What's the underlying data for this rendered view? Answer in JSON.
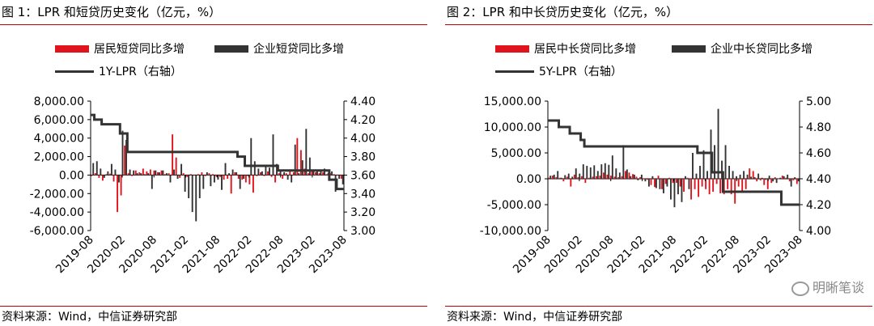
{
  "panels": [
    {
      "title": "图 1：LPR 和短贷历史变化（亿元，%）",
      "source": "资料来源：Wind，中信证券研究部",
      "legend": {
        "resident": "居民短贷同比多增",
        "enterprise": "企业短贷同比多增",
        "rate": "1Y-LPR（右轴）"
      }
    },
    {
      "title": "图 2：LPR 和中长贷历史变化（亿元，%）",
      "source": "资料来源：Wind，中信证券研究部",
      "legend": {
        "resident": "居民中长贷同比多增",
        "enterprise": "企业中长贷同比多增",
        "rate": "5Y-LPR（右轴）"
      }
    }
  ],
  "watermark": "明晰笔谈",
  "colors": {
    "resident": "#e0141c",
    "enterprise": "#333333",
    "rate": "#333333",
    "rule": "#c00000"
  },
  "chart_data": [
    {
      "type": "bar",
      "x_tick_labels": [
        "2019-08",
        "2020-02",
        "2020-08",
        "2021-02",
        "2021-08",
        "2022-02",
        "2022-08",
        "2023-02",
        "2023-08"
      ],
      "x_range": [
        "2019-08",
        "2023-08"
      ],
      "ylim": [
        -6000,
        8000
      ],
      "y_ticks": [
        "-6,000.00",
        "-4,000.00",
        "-2,000.00",
        "0.00",
        "2,000.00",
        "4,000.00",
        "6,000.00",
        "8,000.00"
      ],
      "y_tick_values": [
        -6000,
        -4000,
        -2000,
        0,
        2000,
        4000,
        6000,
        8000
      ],
      "y2lim": [
        3.0,
        4.4
      ],
      "y2_ticks": [
        "3.00",
        "3.20",
        "3.40",
        "3.60",
        "3.80",
        "4.00",
        "4.20",
        "4.40"
      ],
      "y2_tick_values": [
        3.0,
        3.2,
        3.4,
        3.6,
        3.8,
        4.0,
        4.2,
        4.4
      ],
      "series": [
        {
          "name": "居民短贷同比多增",
          "axis": "left",
          "values": [
            -100,
            200,
            -300,
            -600,
            100,
            150,
            -700,
            -4000,
            -2200,
            3200,
            200,
            -100,
            500,
            300,
            700,
            400,
            600,
            500,
            300,
            500,
            100,
            200,
            4400,
            1900,
            -300,
            200,
            -200,
            100,
            0,
            100,
            300,
            -100,
            200,
            100,
            -200,
            -200,
            -500,
            -400,
            -2000,
            300,
            -400,
            -500,
            -800,
            -1000,
            -1900,
            -100,
            300,
            -100,
            400,
            -200,
            -800,
            200,
            -400,
            200,
            500,
            300,
            4000,
            2700,
            700,
            200,
            400,
            300,
            200,
            300,
            100,
            200,
            100,
            0,
            -400
          ]
        },
        {
          "name": "企业短贷同比多增",
          "axis": "left",
          "values": [
            1300,
            1500,
            700,
            -300,
            400,
            1200,
            600,
            -800,
            4800,
            3800,
            600,
            500,
            200,
            200,
            100,
            200,
            -1500,
            500,
            300,
            500,
            200,
            -800,
            600,
            -400,
            1200,
            -1800,
            -2500,
            -4000,
            -5000,
            -2500,
            -1500,
            300,
            -1200,
            -800,
            -500,
            -1600,
            1300,
            200,
            600,
            300,
            -1500,
            -400,
            -100,
            4000,
            1500,
            700,
            400,
            1100,
            800,
            4400,
            1200,
            500,
            300,
            -500,
            -800,
            3300,
            200,
            1600,
            5000,
            1900,
            600,
            600,
            600,
            700,
            200,
            400,
            -1800,
            -400,
            -1000
          ]
        },
        {
          "name": "1Y-LPR（右轴）",
          "axis": "right",
          "type": "line",
          "values": [
            4.25,
            4.2,
            4.2,
            4.15,
            4.15,
            4.15,
            4.15,
            4.15,
            4.05,
            4.05,
            3.85,
            3.85,
            3.85,
            3.85,
            3.85,
            3.85,
            3.85,
            3.85,
            3.85,
            3.85,
            3.85,
            3.85,
            3.85,
            3.85,
            3.85,
            3.85,
            3.85,
            3.85,
            3.85,
            3.85,
            3.85,
            3.85,
            3.85,
            3.85,
            3.85,
            3.85,
            3.85,
            3.85,
            3.85,
            3.85,
            3.8,
            3.8,
            3.7,
            3.7,
            3.7,
            3.7,
            3.7,
            3.7,
            3.7,
            3.7,
            3.7,
            3.65,
            3.65,
            3.65,
            3.65,
            3.65,
            3.65,
            3.65,
            3.65,
            3.65,
            3.65,
            3.65,
            3.65,
            3.65,
            3.65,
            3.55,
            3.55,
            3.45,
            3.45
          ]
        }
      ]
    },
    {
      "type": "bar",
      "x_tick_labels": [
        "2019-08",
        "2020-02",
        "2020-08",
        "2021-02",
        "2021-08",
        "2022-02",
        "2022-08",
        "2023-02",
        "2023-08"
      ],
      "x_range": [
        "2019-08",
        "2023-08"
      ],
      "ylim": [
        -10000,
        15000
      ],
      "y_ticks": [
        "-10,000.00",
        "-5,000.00",
        "0.00",
        "5,000.00",
        "10,000.00",
        "15,000.00"
      ],
      "y_tick_values": [
        -10000,
        -5000,
        0,
        5000,
        10000,
        15000
      ],
      "y2lim": [
        4.0,
        5.0
      ],
      "y2_ticks": [
        "4.00",
        "4.20",
        "4.40",
        "4.60",
        "4.80",
        "5.00"
      ],
      "y2_tick_values": [
        4.0,
        4.2,
        4.4,
        4.6,
        4.8,
        5.0
      ],
      "series": [
        {
          "name": "居民中长贷同比多增",
          "axis": "left",
          "values": [
            200,
            600,
            300,
            200,
            -500,
            400,
            -1500,
            800,
            300,
            500,
            -800,
            200,
            400,
            500,
            600,
            1200,
            800,
            600,
            400,
            300,
            500,
            1500,
            1200,
            900,
            400,
            300,
            100,
            -200,
            -1200,
            -1600,
            600,
            -2000,
            -1000,
            200,
            -800,
            -800,
            -1500,
            -2500,
            200,
            -4000,
            -2000,
            -3500,
            -1500,
            -2000,
            -3000,
            -2500,
            -1000,
            -2800,
            -3000,
            -2000,
            -3000,
            -4800,
            -1500,
            -2500,
            -2000,
            2000,
            1500,
            -500,
            -300,
            -1200,
            -2000,
            -800,
            300,
            0,
            600,
            200,
            -500,
            -300,
            -1000
          ]
        },
        {
          "name": "企业中长贷同比多增",
          "axis": "left",
          "values": [
            600,
            800,
            1500,
            200,
            700,
            1000,
            400,
            2000,
            1000,
            2800,
            2500,
            2200,
            2600,
            1500,
            2800,
            3000,
            2700,
            4500,
            2000,
            1200,
            6500,
            1800,
            500,
            800,
            -300,
            800,
            -500,
            -1500,
            500,
            -1800,
            -2000,
            -2800,
            -1500,
            -4000,
            -5500,
            -3000,
            -4500,
            500,
            -2000,
            5000,
            1000,
            2500,
            5500,
            1500,
            9500,
            6500,
            13500,
            3500,
            6500,
            2500,
            1500,
            500,
            800,
            1500,
            800,
            400,
            300,
            1000,
            200,
            -200,
            600,
            -500,
            -800,
            200,
            500,
            800,
            -1500,
            300,
            -500
          ]
        },
        {
          "name": "5Y-LPR（右轴）",
          "axis": "right",
          "type": "line",
          "values": [
            4.85,
            4.85,
            4.85,
            4.8,
            4.8,
            4.8,
            4.75,
            4.75,
            4.75,
            4.7,
            4.65,
            4.65,
            4.65,
            4.65,
            4.65,
            4.65,
            4.65,
            4.65,
            4.65,
            4.65,
            4.65,
            4.65,
            4.65,
            4.65,
            4.65,
            4.65,
            4.65,
            4.65,
            4.65,
            4.65,
            4.65,
            4.65,
            4.65,
            4.65,
            4.65,
            4.65,
            4.65,
            4.65,
            4.65,
            4.65,
            4.65,
            4.6,
            4.6,
            4.6,
            4.6,
            4.45,
            4.45,
            4.45,
            4.3,
            4.3,
            4.3,
            4.3,
            4.3,
            4.3,
            4.3,
            4.3,
            4.3,
            4.3,
            4.3,
            4.3,
            4.3,
            4.3,
            4.3,
            4.3,
            4.2,
            4.2,
            4.2,
            4.2,
            4.2
          ]
        }
      ]
    }
  ]
}
